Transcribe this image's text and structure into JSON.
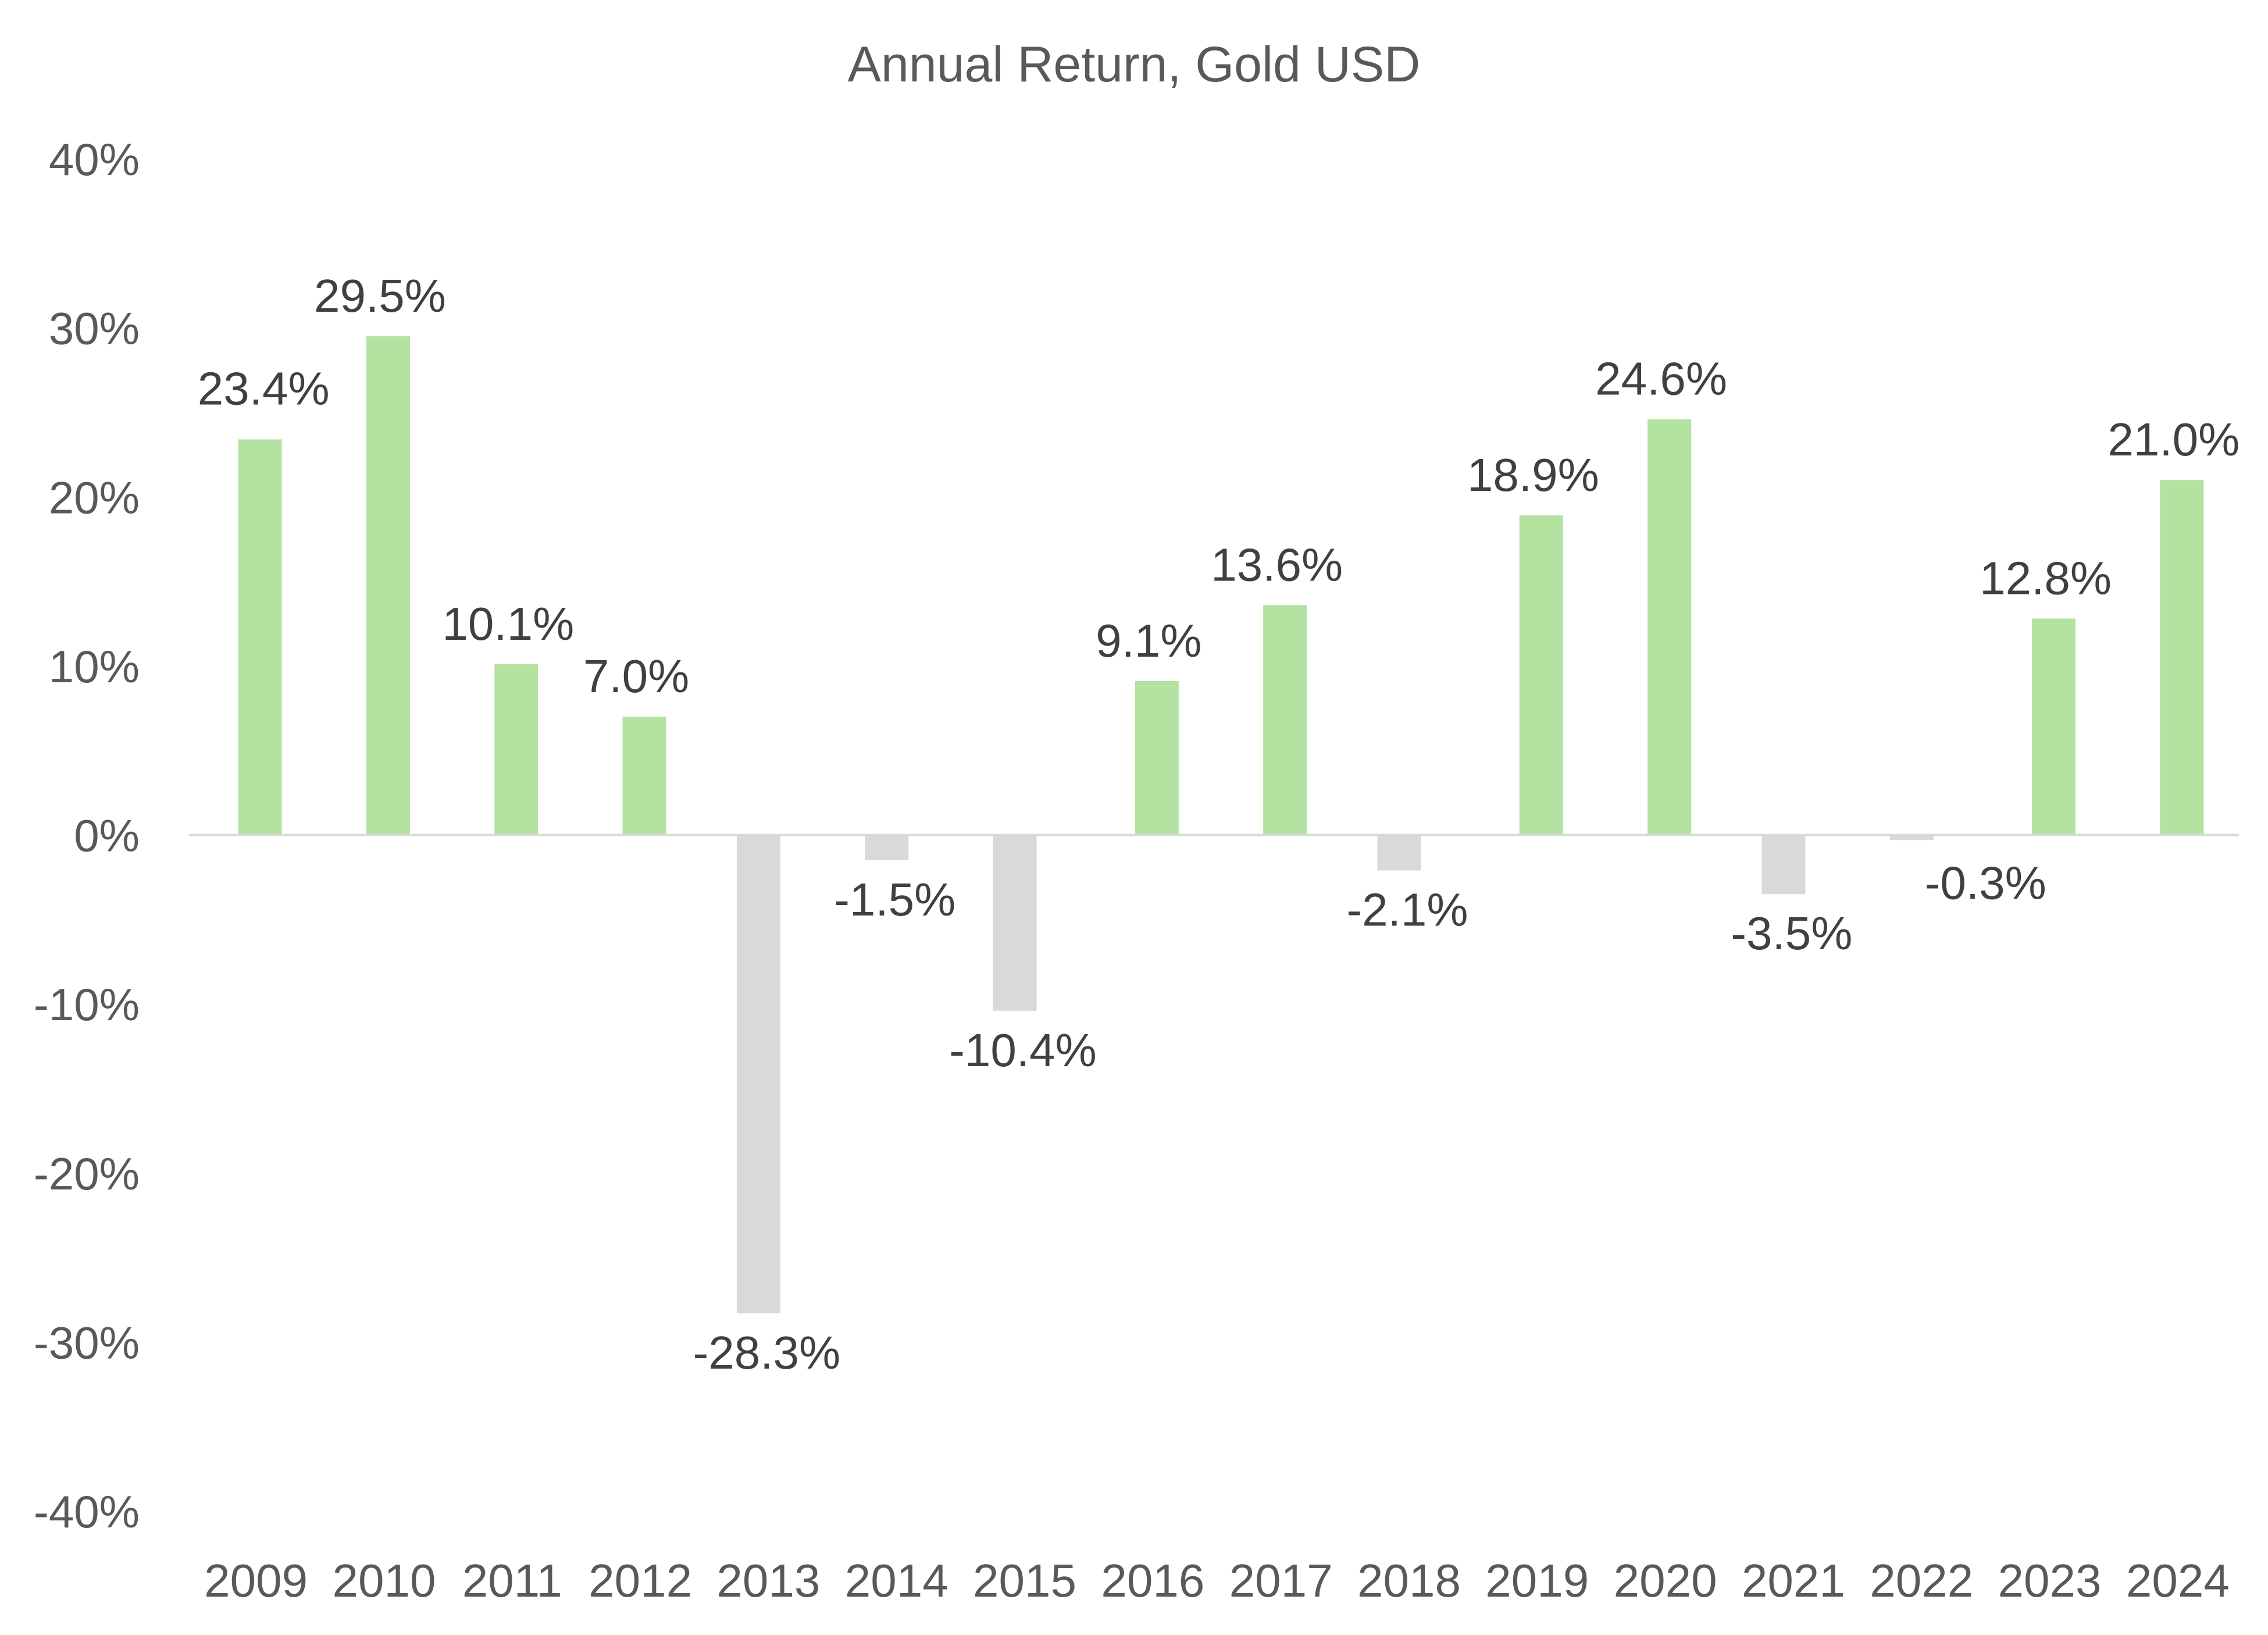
{
  "chart_data": {
    "type": "bar",
    "title": "Annual Return, Gold USD",
    "xlabel": "",
    "ylabel": "",
    "categories": [
      "2009",
      "2010",
      "2011",
      "2012",
      "2013",
      "2014",
      "2015",
      "2016",
      "2017",
      "2018",
      "2019",
      "2020",
      "2021",
      "2022",
      "2023",
      "2024"
    ],
    "values": [
      23.4,
      29.5,
      10.1,
      7.0,
      -28.3,
      -1.5,
      -10.4,
      9.1,
      13.6,
      -2.1,
      18.9,
      24.6,
      -3.5,
      -0.3,
      12.8,
      21.0
    ],
    "data_labels": [
      "23.4%",
      "29.5%",
      "10.1%",
      "7.0%",
      "-28.3%",
      "-1.5%",
      "-10.4%",
      "9.1%",
      "13.6%",
      "-2.1%",
      "18.9%",
      "24.6%",
      "-3.5%",
      "-0.3%",
      "12.8%",
      "21.0%"
    ],
    "ylim": [
      -40,
      40
    ],
    "yticks": [
      40,
      30,
      20,
      10,
      0,
      -10,
      -20,
      -30,
      -40
    ],
    "ytick_labels": [
      "40%",
      "30%",
      "20%",
      "10%",
      "0%",
      "-10%",
      "-20%",
      "-30%",
      "-40%"
    ],
    "grid": false,
    "legend": "none",
    "colors": {
      "positive": "#b3e2a1",
      "negative": "#d9d9d9",
      "axis": "#d9d9d9"
    }
  }
}
